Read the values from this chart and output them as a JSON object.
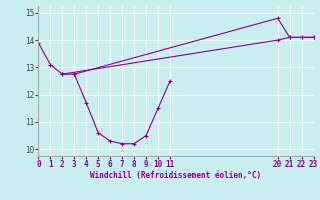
{
  "line1_x": [
    0,
    1,
    2,
    3,
    4,
    5,
    6,
    7,
    8,
    9,
    10,
    11
  ],
  "line1_y": [
    13.9,
    13.1,
    12.75,
    12.75,
    11.7,
    10.6,
    10.3,
    10.2,
    10.2,
    10.5,
    11.5,
    12.5
  ],
  "line2_x": [
    3,
    20,
    21,
    22,
    23
  ],
  "line2_y": [
    12.75,
    14.8,
    14.1,
    14.1,
    14.1
  ],
  "line3_x": [
    2,
    20,
    21,
    22,
    23
  ],
  "line3_y": [
    12.75,
    14.0,
    14.1,
    14.1,
    14.1
  ],
  "color": "#8b008b",
  "bg_color": "#c8eef0",
  "xlim": [
    0,
    23
  ],
  "ylim": [
    9.75,
    15.25
  ],
  "yticks": [
    10,
    11,
    12,
    13,
    14,
    15
  ],
  "xticks": [
    0,
    1,
    2,
    3,
    4,
    5,
    6,
    7,
    8,
    9,
    10,
    11,
    20,
    21,
    22,
    23
  ],
  "xlabel": "Windchill (Refroidissement éolien,°C)"
}
